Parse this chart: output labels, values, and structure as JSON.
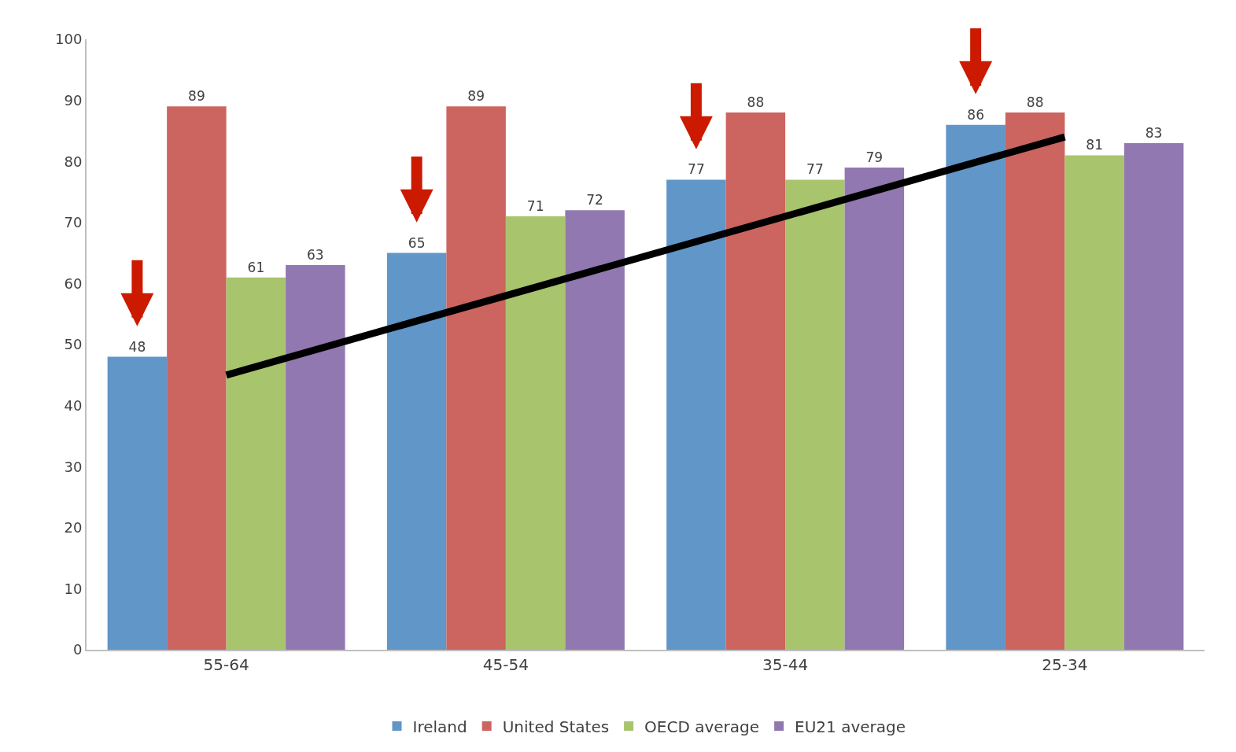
{
  "chart_data": {
    "type": "bar",
    "categories": [
      "55-64",
      "45-54",
      "35-44",
      "25-34"
    ],
    "series": [
      {
        "name": "Ireland",
        "color": "#6096c8",
        "values": [
          48,
          65,
          77,
          86
        ],
        "value_labels": [
          "48",
          "65",
          "77",
          "86"
        ]
      },
      {
        "name": "United States",
        "color": "#cc6460",
        "values": [
          89,
          89,
          88,
          88
        ],
        "value_labels": [
          "89",
          "89",
          "88",
          "88"
        ]
      },
      {
        "name": "OECD average",
        "color": "#a8c46c",
        "values": [
          61,
          71,
          77,
          81
        ],
        "value_labels": [
          "61",
          "71",
          "77",
          "81"
        ]
      },
      {
        "name": "EU21 average",
        "color": "#9178b0",
        "values": [
          63,
          72,
          79,
          83
        ],
        "value_labels": [
          "63",
          "72",
          "79",
          "83"
        ]
      },
      {
        "type": "line",
        "color": "#000000",
        "x": [
          "55-64",
          "25-34"
        ],
        "values": [
          45,
          84
        ]
      }
    ],
    "ylim": [
      0,
      100
    ],
    "yticks": [
      0,
      10,
      20,
      30,
      40,
      50,
      60,
      70,
      80,
      90,
      100
    ],
    "grid": false,
    "legend": "bottom"
  }
}
